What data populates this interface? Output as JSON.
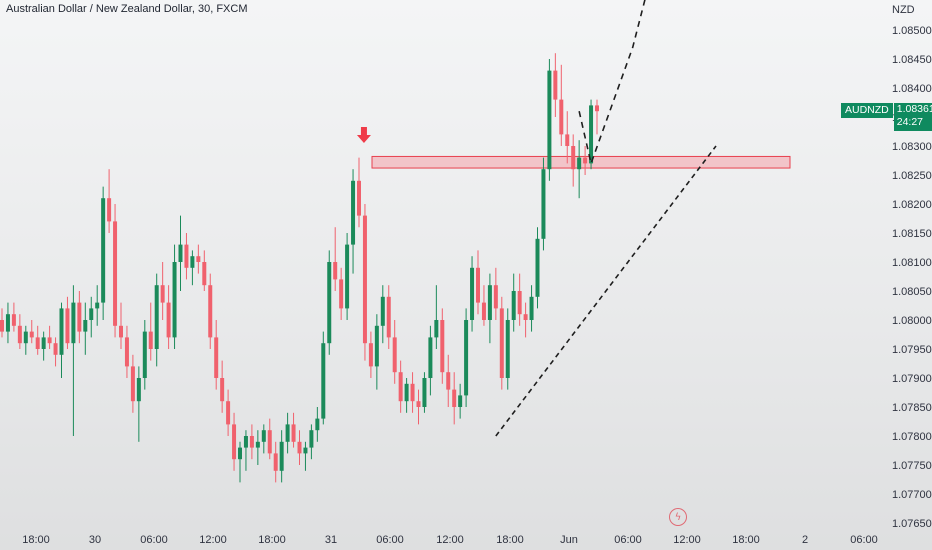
{
  "header": {
    "title": "Australian Dollar / New Zealand Dollar, 30, FXCM"
  },
  "axis": {
    "currency": "NZD"
  },
  "price_badge": {
    "symbol": "AUDNZD",
    "price": "1.08361",
    "countdown": "24:27"
  },
  "event_icon": {
    "name": "lightning-icon",
    "glyph": "ϟ"
  },
  "colors": {
    "up": "#1b8a5a",
    "down": "#f0616d",
    "zone_fill": "#f3b6bc",
    "zone_border": "#e8404e",
    "arrow": "#ef3b49",
    "line": "#1e1e1e"
  },
  "chart_data": {
    "type": "candlestick",
    "title": "Australian Dollar / New Zealand Dollar, 30, FXCM",
    "ylabel": "NZD",
    "ylim": [
      1.0765,
      1.0853
    ],
    "y_ticks": [
      "1.08500",
      "1.08450",
      "1.08400",
      "1.08350",
      "1.08300",
      "1.08250",
      "1.08200",
      "1.08150",
      "1.08100",
      "1.08050",
      "1.08000",
      "1.07950",
      "1.07900",
      "1.07850",
      "1.07800",
      "1.07750",
      "1.07700",
      "1.07650"
    ],
    "x_ticks": [
      "18:00",
      "30",
      "06:00",
      "12:00",
      "18:00",
      "31",
      "06:00",
      "12:00",
      "18:00",
      "Jun",
      "06:00",
      "12:00",
      "18:00",
      "2",
      "06:00"
    ],
    "last_price": 1.08361,
    "zone": {
      "low": 1.08262,
      "high": 1.08282
    },
    "candles": [
      [
        1.08,
        1.0802,
        1.0797,
        1.0798
      ],
      [
        1.0798,
        1.0803,
        1.0796,
        1.0801
      ],
      [
        1.0801,
        1.0803,
        1.0798,
        1.0799
      ],
      [
        1.0799,
        1.0801,
        1.0795,
        1.0796
      ],
      [
        1.0796,
        1.0799,
        1.0794,
        1.0798
      ],
      [
        1.0798,
        1.08,
        1.0796,
        1.0797
      ],
      [
        1.0797,
        1.0799,
        1.0794,
        1.0795
      ],
      [
        1.0795,
        1.0798,
        1.0793,
        1.0797
      ],
      [
        1.0797,
        1.0799,
        1.0795,
        1.0796
      ],
      [
        1.0796,
        1.0797,
        1.0792,
        1.0794
      ],
      [
        1.0794,
        1.0803,
        1.079,
        1.0802
      ],
      [
        1.0802,
        1.0804,
        1.0795,
        1.0796
      ],
      [
        1.0796,
        1.0806,
        1.078,
        1.0803
      ],
      [
        1.0803,
        1.0805,
        1.0796,
        1.0798
      ],
      [
        1.0798,
        1.0803,
        1.0794,
        1.08
      ],
      [
        1.08,
        1.0804,
        1.0797,
        1.0802
      ],
      [
        1.0802,
        1.0806,
        1.0799,
        1.0803
      ],
      [
        1.0803,
        1.0823,
        1.08,
        1.0821
      ],
      [
        1.0821,
        1.0826,
        1.0815,
        1.0817
      ],
      [
        1.0817,
        1.082,
        1.0797,
        1.0799
      ],
      [
        1.0799,
        1.0803,
        1.0795,
        1.0797
      ],
      [
        1.0797,
        1.0799,
        1.079,
        1.0792
      ],
      [
        1.0792,
        1.0794,
        1.0784,
        1.0786
      ],
      [
        1.0786,
        1.0792,
        1.0779,
        1.079
      ],
      [
        1.079,
        1.08,
        1.0788,
        1.0798
      ],
      [
        1.0798,
        1.0803,
        1.0793,
        1.0795
      ],
      [
        1.0795,
        1.0808,
        1.0792,
        1.0806
      ],
      [
        1.0806,
        1.081,
        1.08,
        1.0803
      ],
      [
        1.0803,
        1.0806,
        1.0795,
        1.0797
      ],
      [
        1.0797,
        1.0813,
        1.0795,
        1.081
      ],
      [
        1.081,
        1.0818,
        1.0805,
        1.0813
      ],
      [
        1.0813,
        1.0815,
        1.0807,
        1.0809
      ],
      [
        1.0809,
        1.0812,
        1.0806,
        1.0811
      ],
      [
        1.0811,
        1.0813,
        1.0808,
        1.081
      ],
      [
        1.081,
        1.0812,
        1.0805,
        1.0806
      ],
      [
        1.0806,
        1.0808,
        1.0795,
        1.0797
      ],
      [
        1.0797,
        1.08,
        1.0788,
        1.079
      ],
      [
        1.079,
        1.0793,
        1.0784,
        1.0786
      ],
      [
        1.0786,
        1.0788,
        1.078,
        1.0782
      ],
      [
        1.0782,
        1.0784,
        1.0774,
        1.0776
      ],
      [
        1.0776,
        1.0779,
        1.0772,
        1.0778
      ],
      [
        1.0778,
        1.0781,
        1.0774,
        1.078
      ],
      [
        1.078,
        1.0782,
        1.0776,
        1.0778
      ],
      [
        1.0778,
        1.0781,
        1.0775,
        1.0779
      ],
      [
        1.0779,
        1.0782,
        1.0777,
        1.0781
      ],
      [
        1.0781,
        1.0783,
        1.0776,
        1.0777
      ],
      [
        1.0777,
        1.0779,
        1.0772,
        1.0774
      ],
      [
        1.0774,
        1.0781,
        1.0772,
        1.0779
      ],
      [
        1.0779,
        1.0784,
        1.0777,
        1.0782
      ],
      [
        1.0782,
        1.0784,
        1.0778,
        1.0779
      ],
      [
        1.0779,
        1.0781,
        1.0775,
        1.0777
      ],
      [
        1.0777,
        1.0779,
        1.0774,
        1.0778
      ],
      [
        1.0778,
        1.0782,
        1.0776,
        1.0781
      ],
      [
        1.0781,
        1.0785,
        1.0779,
        1.0783
      ],
      [
        1.0783,
        1.0798,
        1.0782,
        1.0796
      ],
      [
        1.0796,
        1.0812,
        1.0794,
        1.081
      ],
      [
        1.081,
        1.0816,
        1.0805,
        1.0807
      ],
      [
        1.0807,
        1.0809,
        1.08,
        1.0802
      ],
      [
        1.0802,
        1.0815,
        1.08,
        1.0813
      ],
      [
        1.0813,
        1.0826,
        1.0808,
        1.0824
      ],
      [
        1.0824,
        1.0828,
        1.0816,
        1.0818
      ],
      [
        1.0818,
        1.082,
        1.0793,
        1.0796
      ],
      [
        1.0796,
        1.0798,
        1.079,
        1.0792
      ],
      [
        1.0792,
        1.0801,
        1.0788,
        1.0799
      ],
      [
        1.0799,
        1.0806,
        1.0796,
        1.0804
      ],
      [
        1.0804,
        1.0806,
        1.0795,
        1.0797
      ],
      [
        1.0797,
        1.08,
        1.0789,
        1.0791
      ],
      [
        1.0791,
        1.0793,
        1.0784,
        1.0786
      ],
      [
        1.0786,
        1.079,
        1.0784,
        1.0789
      ],
      [
        1.0789,
        1.0791,
        1.0784,
        1.0786
      ],
      [
        1.0786,
        1.0788,
        1.0782,
        1.0785
      ],
      [
        1.0785,
        1.0791,
        1.0784,
        1.079
      ],
      [
        1.079,
        1.0799,
        1.0787,
        1.0797
      ],
      [
        1.0797,
        1.0806,
        1.0795,
        1.08
      ],
      [
        1.08,
        1.0802,
        1.0789,
        1.0791
      ],
      [
        1.0791,
        1.0794,
        1.0785,
        1.0788
      ],
      [
        1.0788,
        1.0791,
        1.0782,
        1.0785
      ],
      [
        1.0785,
        1.0789,
        1.0783,
        1.0787
      ],
      [
        1.0787,
        1.0802,
        1.0785,
        1.08
      ],
      [
        1.08,
        1.0811,
        1.0798,
        1.0809
      ],
      [
        1.0809,
        1.0812,
        1.0801,
        1.0803
      ],
      [
        1.0803,
        1.0806,
        1.0799,
        1.08
      ],
      [
        1.08,
        1.0808,
        1.0796,
        1.0806
      ],
      [
        1.0806,
        1.0809,
        1.08,
        1.0802
      ],
      [
        1.0802,
        1.0804,
        1.0788,
        1.079
      ],
      [
        1.079,
        1.0802,
        1.0788,
        1.08
      ],
      [
        1.08,
        1.0808,
        1.0798,
        1.0805
      ],
      [
        1.0805,
        1.0808,
        1.0799,
        1.0801
      ],
      [
        1.0801,
        1.0803,
        1.0797,
        1.08
      ],
      [
        1.08,
        1.0806,
        1.0798,
        1.0804
      ],
      [
        1.0804,
        1.0816,
        1.0802,
        1.0814
      ],
      [
        1.0814,
        1.0828,
        1.0812,
        1.0826
      ],
      [
        1.0826,
        1.0845,
        1.0824,
        1.0843
      ],
      [
        1.0843,
        1.0846,
        1.0835,
        1.0838
      ],
      [
        1.0838,
        1.0844,
        1.083,
        1.0832
      ],
      [
        1.0832,
        1.0836,
        1.0827,
        1.083
      ],
      [
        1.083,
        1.0832,
        1.0823,
        1.0826
      ],
      [
        1.0826,
        1.0831,
        1.0821,
        1.0828
      ],
      [
        1.0828,
        1.083,
        1.0825,
        1.0827
      ],
      [
        1.0827,
        1.0838,
        1.0826,
        1.0837
      ],
      [
        1.0837,
        1.0838,
        1.0832,
        1.0836
      ]
    ],
    "annotations": {
      "marker": {
        "type": "arrow-down",
        "at_index": 61
      },
      "trendline": [
        {
          "x_index": 83,
          "y": 1.078
        },
        {
          "x_index": 120,
          "y": 1.083
        }
      ],
      "projection": [
        {
          "x_index": 97,
          "y": 1.0836
        },
        {
          "x_index": 99,
          "y": 1.0827
        },
        {
          "x_index": 106,
          "y": 1.0847
        },
        {
          "x_index": 110,
          "y": 1.0863
        }
      ]
    }
  }
}
